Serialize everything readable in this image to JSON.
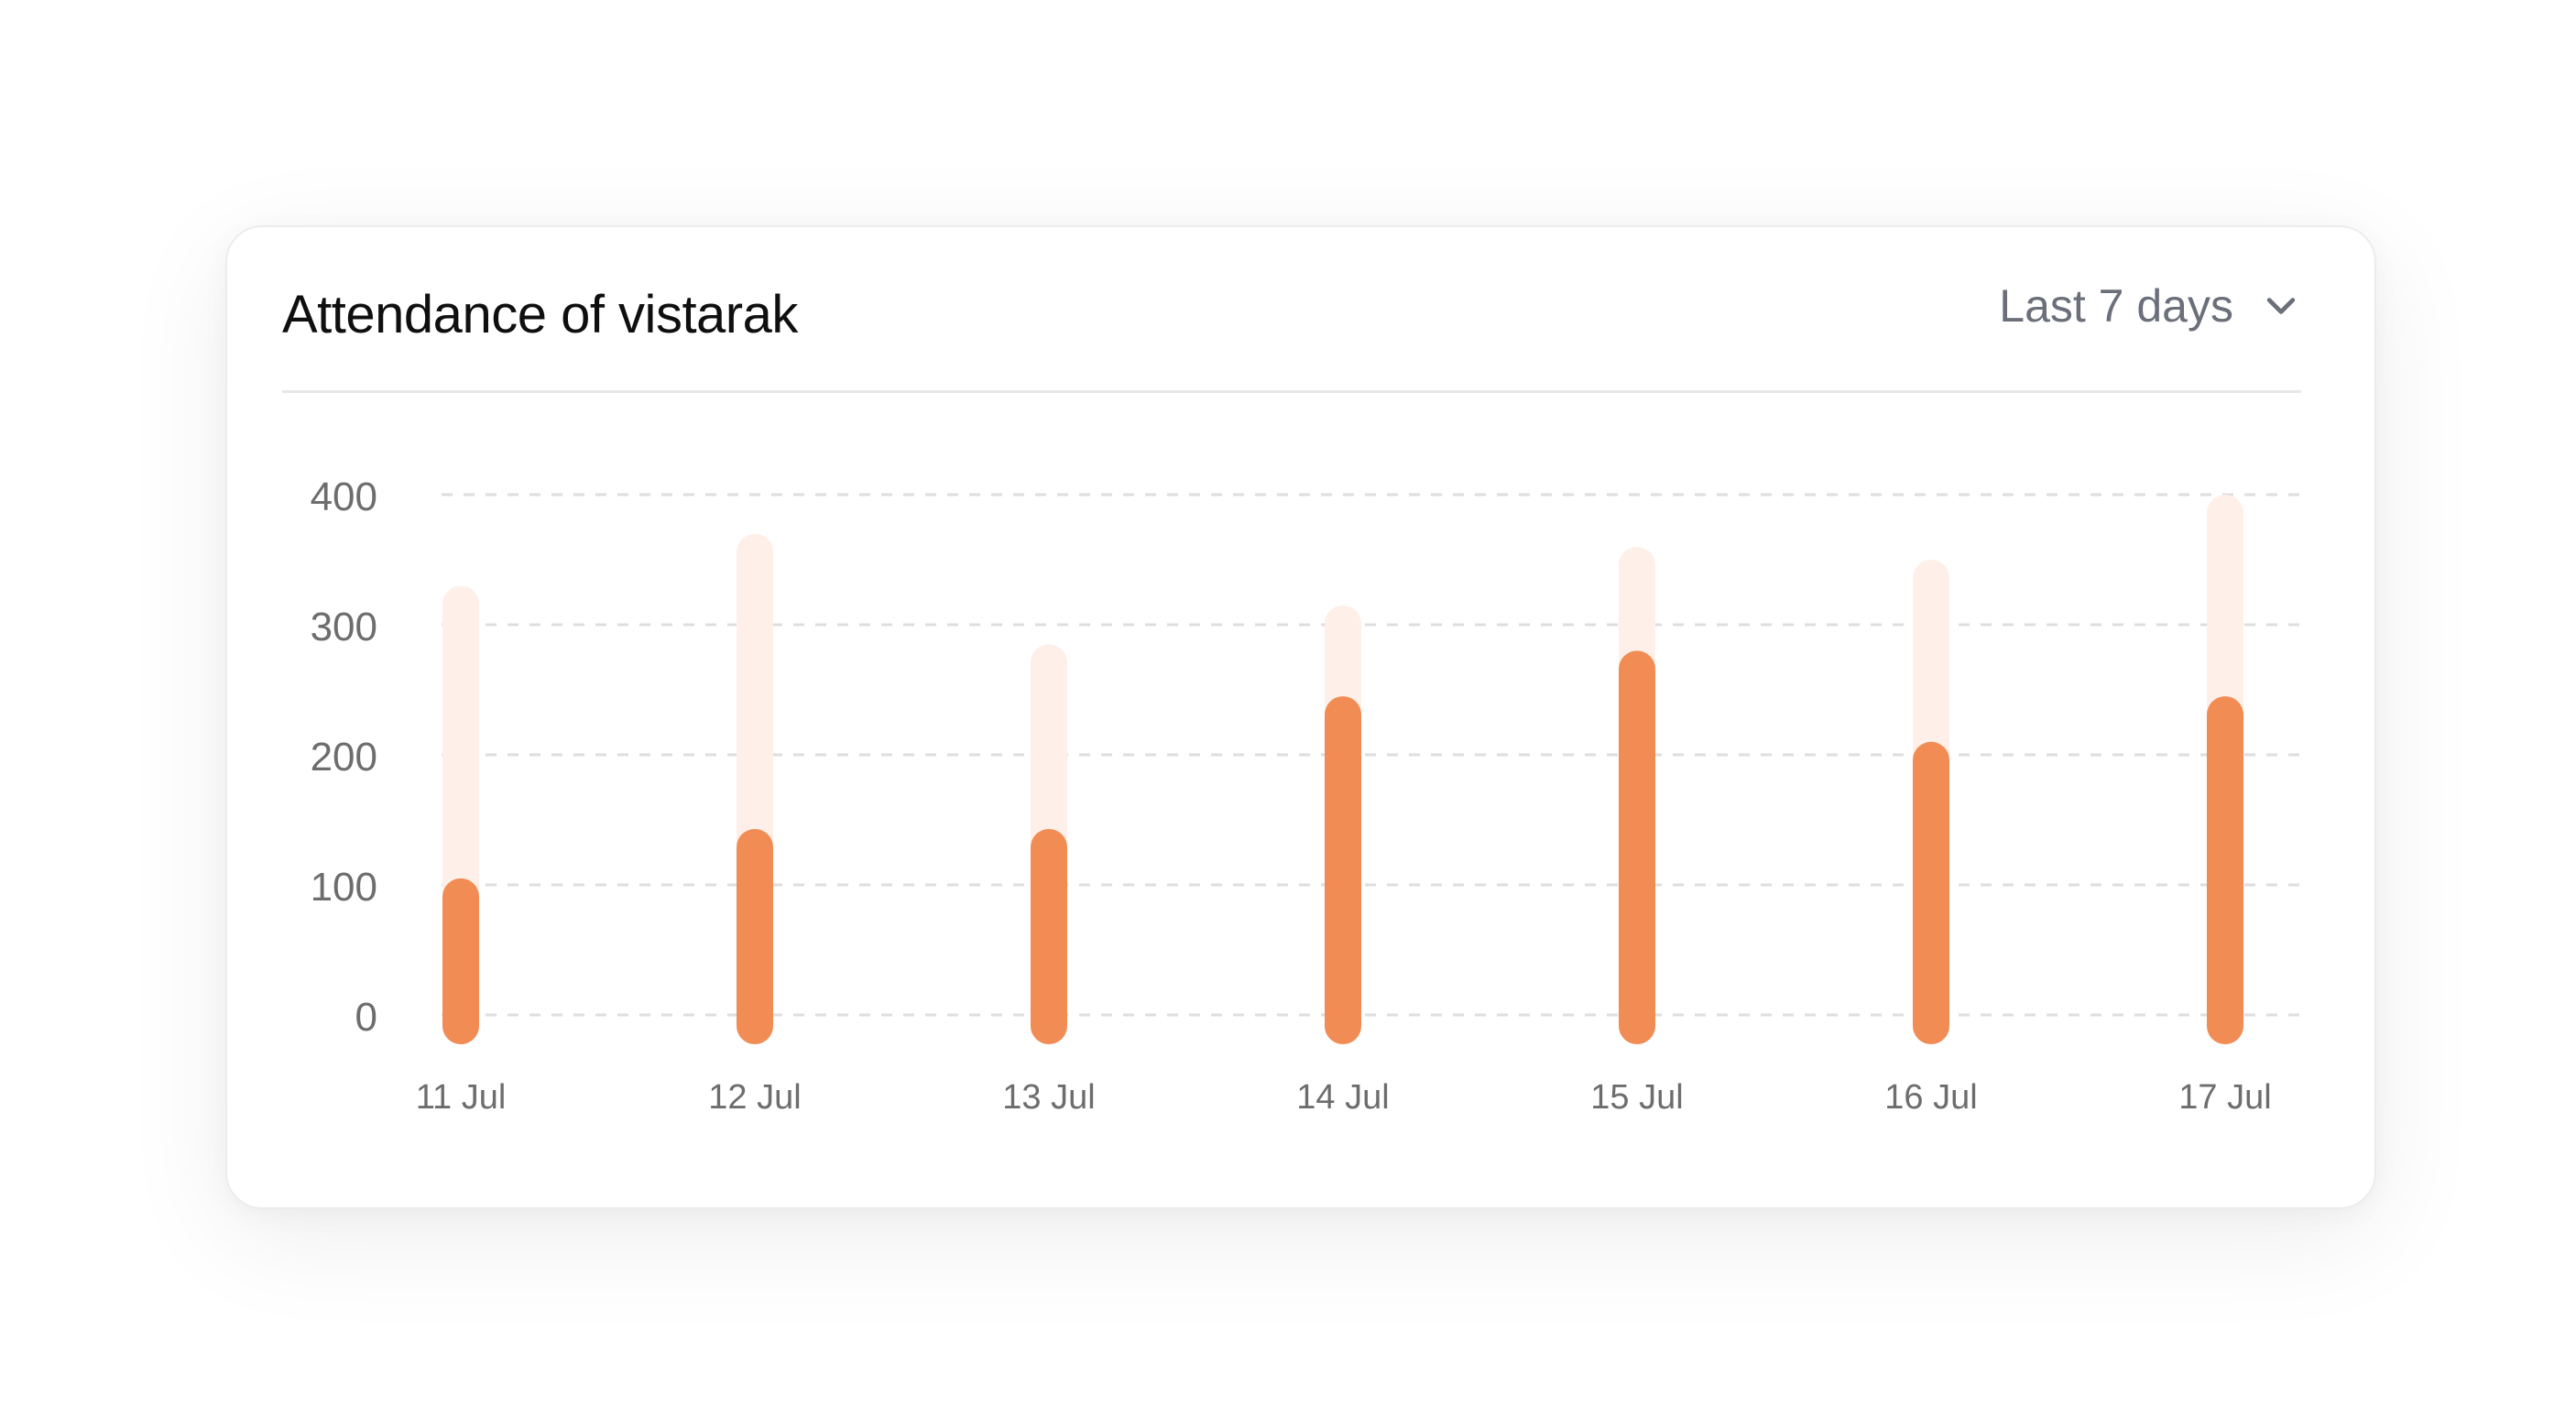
{
  "card": {
    "title": "Attendance of vistarak",
    "range_select": {
      "label": "Last 7 days",
      "icon": "chevron-down-icon"
    }
  },
  "colors": {
    "present": "#F28C55",
    "total": "#FEF0E9",
    "gridline": "#dedede",
    "axis_text": "#6d6d6d"
  },
  "chart_data": {
    "type": "bar",
    "title": "Attendance of vistarak",
    "categories": [
      "11 Jul",
      "12 Jul",
      "13 Jul",
      "14 Jul",
      "15 Jul",
      "16 Jul",
      "17 Jul"
    ],
    "series": [
      {
        "values": [
          330,
          370,
          285,
          315,
          360,
          350,
          400
        ]
      },
      {
        "values": [
          105,
          143,
          143,
          245,
          280,
          210,
          245
        ]
      }
    ],
    "yticks": [
      0,
      100,
      200,
      300,
      400
    ],
    "ylim": [
      0,
      400
    ],
    "xlabel": "",
    "ylabel": "",
    "grid": true,
    "legend": "none"
  }
}
